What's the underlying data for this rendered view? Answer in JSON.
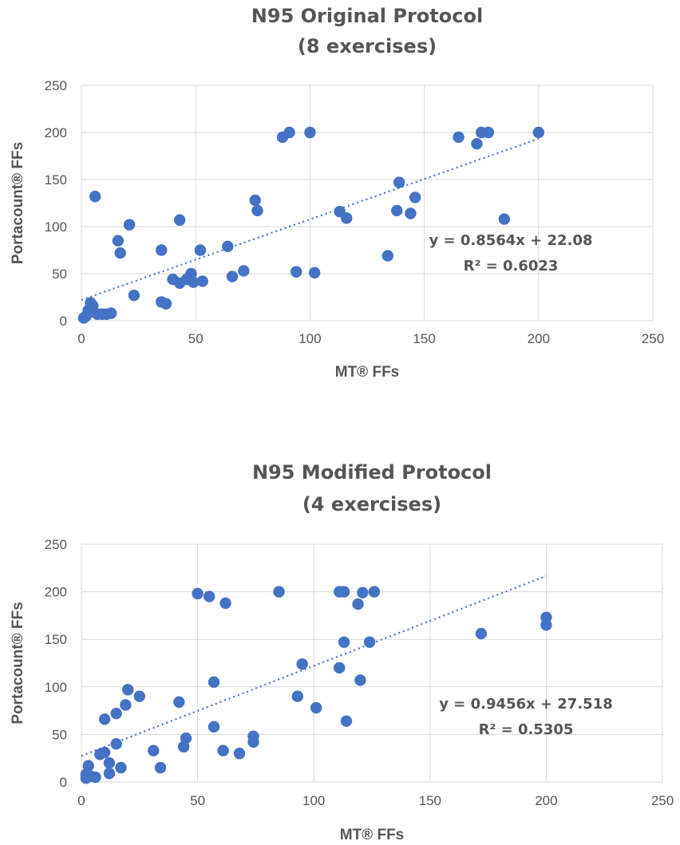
{
  "chart_data": [
    {
      "type": "scatter",
      "title_lines": [
        "N95 Original Protocol",
        "(8 exercises)"
      ],
      "xlabel": "MT® FFs",
      "ylabel": "Portacount® FFs",
      "xlim": [
        0,
        250
      ],
      "ylim": [
        0,
        250
      ],
      "xticks": [
        0,
        50,
        100,
        150,
        200,
        250
      ],
      "yticks": [
        0,
        50,
        100,
        150,
        200,
        250
      ],
      "grid": true,
      "trendline": {
        "slope": 0.8564,
        "intercept": 22.08,
        "x_range": [
          0,
          200
        ],
        "style": "dotted"
      },
      "annotations": [
        "y = 0.8564x + 22.08",
        "R² = 0.6023"
      ],
      "points": [
        [
          1,
          3
        ],
        [
          2,
          5
        ],
        [
          3,
          8
        ],
        [
          4,
          19
        ],
        [
          5,
          16
        ],
        [
          3,
          11
        ],
        [
          6,
          132
        ],
        [
          7,
          7
        ],
        [
          9,
          7
        ],
        [
          11,
          7
        ],
        [
          13,
          8
        ],
        [
          16,
          85
        ],
        [
          17,
          72
        ],
        [
          21,
          102
        ],
        [
          23,
          27
        ],
        [
          35,
          75
        ],
        [
          35,
          20
        ],
        [
          37,
          18
        ],
        [
          40,
          44
        ],
        [
          43,
          107
        ],
        [
          43,
          40
        ],
        [
          46,
          44
        ],
        [
          48,
          50
        ],
        [
          49,
          41
        ],
        [
          52,
          75
        ],
        [
          53,
          42
        ],
        [
          64,
          79
        ],
        [
          66,
          47
        ],
        [
          71,
          53
        ],
        [
          76,
          128
        ],
        [
          77,
          117
        ],
        [
          88,
          195
        ],
        [
          91,
          200
        ],
        [
          94,
          52
        ],
        [
          100,
          200
        ],
        [
          102,
          51
        ],
        [
          113,
          116
        ],
        [
          116,
          109
        ],
        [
          134,
          69
        ],
        [
          138,
          117
        ],
        [
          139,
          147
        ],
        [
          144,
          114
        ],
        [
          146,
          131
        ],
        [
          165,
          195
        ],
        [
          173,
          188
        ],
        [
          175,
          200
        ],
        [
          178,
          200
        ],
        [
          185,
          108
        ],
        [
          200,
          200
        ]
      ]
    },
    {
      "type": "scatter",
      "title_lines": [
        "N95 Modified Protocol",
        "(4 exercises)"
      ],
      "xlabel": "MT® FFs",
      "ylabel": "Portacount® FFs",
      "xlim": [
        0,
        250
      ],
      "ylim": [
        0,
        250
      ],
      "xticks": [
        0,
        50,
        100,
        150,
        200,
        250
      ],
      "yticks": [
        0,
        50,
        100,
        150,
        200,
        250
      ],
      "grid": true,
      "trendline": {
        "slope": 0.9456,
        "intercept": 27.518,
        "x_range": [
          0,
          200
        ],
        "style": "dotted"
      },
      "annotations": [
        "y = 0.9456x + 27.518",
        "R² = 0.5305"
      ],
      "points": [
        [
          2,
          4
        ],
        [
          2,
          8
        ],
        [
          3,
          17
        ],
        [
          4,
          6
        ],
        [
          6,
          5
        ],
        [
          8,
          29
        ],
        [
          10,
          31
        ],
        [
          10,
          66
        ],
        [
          12,
          20
        ],
        [
          12,
          9
        ],
        [
          15,
          40
        ],
        [
          15,
          72
        ],
        [
          17,
          15
        ],
        [
          19,
          81
        ],
        [
          20,
          97
        ],
        [
          25,
          90
        ],
        [
          31,
          33
        ],
        [
          34,
          15
        ],
        [
          42,
          84
        ],
        [
          44,
          37
        ],
        [
          45,
          46
        ],
        [
          50,
          198
        ],
        [
          55,
          195
        ],
        [
          57,
          105
        ],
        [
          57,
          58
        ],
        [
          61,
          33
        ],
        [
          62,
          188
        ],
        [
          68,
          30
        ],
        [
          74,
          42
        ],
        [
          74,
          48
        ],
        [
          85,
          200
        ],
        [
          93,
          90
        ],
        [
          95,
          124
        ],
        [
          101,
          78
        ],
        [
          111,
          120
        ],
        [
          111,
          200
        ],
        [
          113,
          200
        ],
        [
          113,
          147
        ],
        [
          114,
          64
        ],
        [
          119,
          187
        ],
        [
          120,
          107
        ],
        [
          121,
          199
        ],
        [
          124,
          147
        ],
        [
          126,
          200
        ],
        [
          172,
          156
        ],
        [
          200,
          173
        ],
        [
          200,
          165
        ]
      ]
    }
  ]
}
